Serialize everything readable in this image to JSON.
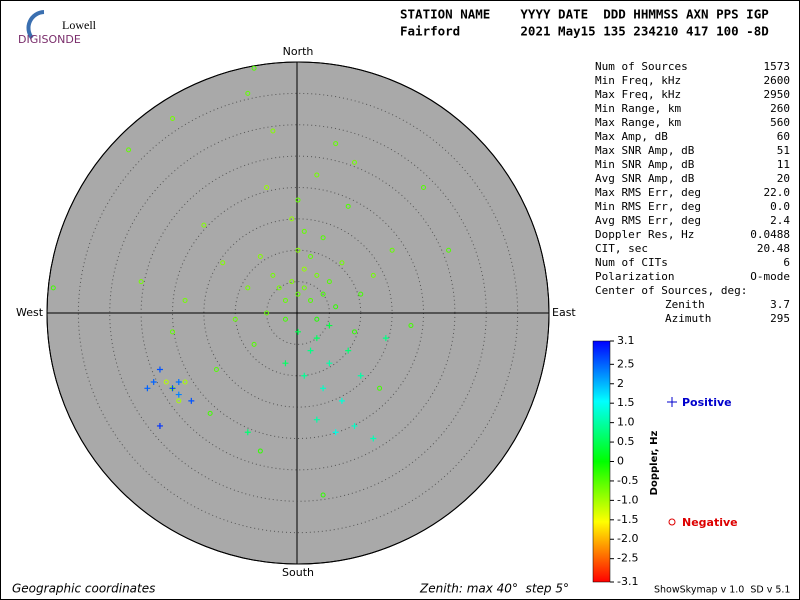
{
  "logo": {
    "top": "Lowell",
    "bottom": "DIGISONDE"
  },
  "header": {
    "line1": "STATION NAME    YYYY DATE  DDD HHMMSS AXN PPS IGP",
    "line2": "Fairford        2021 May15 135 234210 417 100 -8D"
  },
  "stats": {
    "rows": [
      [
        "Num of Sources",
        "1573"
      ],
      [
        "Min Freq, kHz",
        "2600"
      ],
      [
        "Max Freq, kHz",
        "2950"
      ],
      [
        "Min Range, km",
        "260"
      ],
      [
        "Max Range, km",
        "560"
      ],
      [
        "Max Amp, dB",
        "60"
      ],
      [
        "Max SNR Amp, dB",
        "51"
      ],
      [
        "Min SNR Amp, dB",
        "11"
      ],
      [
        "Avg SNR Amp, dB",
        "20"
      ],
      [
        "Max RMS Err, deg",
        "22.0"
      ],
      [
        "Min RMS Err, deg",
        "0.0"
      ],
      [
        "Avg RMS Err, deg",
        "2.4"
      ],
      [
        "Doppler Res, Hz",
        "0.0488"
      ],
      [
        "CIT, sec",
        "20.48"
      ],
      [
        "Num of CITs",
        "6"
      ],
      [
        "Polarization",
        "O-mode"
      ]
    ],
    "center": {
      "title": "Center of Sources, deg:",
      "rows": [
        [
          "Zenith",
          "3.7"
        ],
        [
          "Azimuth",
          "295"
        ]
      ]
    }
  },
  "footer": {
    "left": "Geographic coordinates",
    "middle": "Zenith: max 40°  step 5°",
    "right": "ShowSkymap v 1.0  SD v 5.1"
  },
  "chart_data": {
    "type": "skymap",
    "directions": {
      "north": "North",
      "south": "South",
      "east": "East",
      "west": "West"
    },
    "rlim": [
      0,
      40
    ],
    "rticks": [
      5,
      10,
      15,
      20,
      25,
      30,
      35,
      40
    ],
    "colorbar": {
      "label": "Doppler, Hz",
      "lim": [
        -3.1,
        3.1
      ],
      "colormap": [
        "#ff0000",
        "#ffff00",
        "#00ff00",
        "#00ffff",
        "#0000ff"
      ],
      "ticks": [
        3.1,
        2.5,
        {
          "value": 2,
          "label": "2"
        },
        1.5,
        {
          "value": 1,
          "label": "1.0"
        },
        0.5,
        0,
        -0.5,
        {
          "value": -1,
          "label": "-1.0"
        },
        -1.5,
        {
          "value": -2,
          "label": "-2.0"
        },
        -2.5,
        -3.1
      ]
    },
    "series": [
      {
        "name": "Negative",
        "marker": "o",
        "color": "#dd0000",
        "x": [
          0,
          1,
          2,
          -1,
          3,
          -2,
          4,
          1,
          -3,
          2,
          0,
          5,
          -4,
          6,
          -5,
          3,
          -2,
          7,
          -6,
          1,
          -1,
          4,
          -8,
          10,
          -10,
          9,
          -7,
          12,
          -12,
          0,
          3,
          -5,
          8,
          15,
          -15,
          18,
          -18,
          6,
          -4,
          20,
          -20,
          -25,
          -14,
          -13,
          -6,
          13,
          -19,
          -21,
          -20,
          -18,
          -8,
          -20,
          4,
          -39,
          24,
          -27,
          9,
          -7
        ],
        "y": [
          3,
          4,
          2,
          5,
          6,
          2,
          3,
          7,
          4,
          9,
          10,
          5,
          6,
          1,
          0,
          -1,
          -1,
          8,
          9,
          13,
          15,
          12,
          4,
          3,
          -1,
          -3,
          -5,
          6,
          8,
          18,
          22,
          20,
          17,
          10,
          14,
          -2,
          2,
          27,
          29,
          20,
          -3,
          5,
          -16,
          -9,
          -22,
          -12,
          -14,
          -11,
          -12,
          -11,
          35,
          31,
          -29,
          4,
          10,
          26,
          24,
          39
        ],
        "doppler": [
          -0.6,
          -0.7,
          -0.5,
          -0.8,
          -0.7,
          -0.6,
          -0.4,
          -0.9,
          -0.7,
          -0.6,
          -0.8,
          -0.5,
          -0.7,
          -0.3,
          -0.6,
          -0.2,
          -0.4,
          -0.7,
          -0.8,
          -0.6,
          -0.9,
          -0.5,
          -0.7,
          -0.4,
          -0.6,
          -0.3,
          -0.5,
          -0.7,
          -0.8,
          -0.6,
          -0.7,
          -0.9,
          -0.5,
          -0.6,
          -0.8,
          -0.4,
          -0.7,
          -0.6,
          -0.8,
          -0.5,
          -0.6,
          -0.7,
          -0.4,
          -0.5,
          -0.3,
          -0.4,
          -1.0,
          -1.1,
          -0.9,
          -1.0,
          -0.6,
          -0.7,
          -0.3,
          -0.4,
          -0.5,
          -0.6,
          -0.7,
          -0.5
        ]
      },
      {
        "name": "Positive",
        "marker": "+",
        "color": "#0000cc",
        "x": [
          3,
          5,
          2,
          4,
          7,
          3,
          6,
          1,
          9,
          -8,
          10,
          5,
          0,
          8,
          12,
          -2,
          14,
          -22,
          -23,
          -19,
          -20,
          -17,
          -22,
          -24,
          -19
        ],
        "y": [
          -4,
          -8,
          -6,
          -12,
          -14,
          -17,
          -19,
          -10,
          -18,
          -19,
          -10,
          -2,
          -3,
          -6,
          -20,
          -8,
          -4,
          -9,
          -11,
          -11,
          -12,
          -14,
          -18,
          -12,
          -13
        ],
        "doppler": [
          0.6,
          1.0,
          0.8,
          1.2,
          1.3,
          1.0,
          1.4,
          0.9,
          1.2,
          0.7,
          1.0,
          0.4,
          0.5,
          0.7,
          1.1,
          0.6,
          0.8,
          2.6,
          2.5,
          2.4,
          2.7,
          2.6,
          2.8,
          2.5,
          2.3
        ]
      }
    ]
  }
}
